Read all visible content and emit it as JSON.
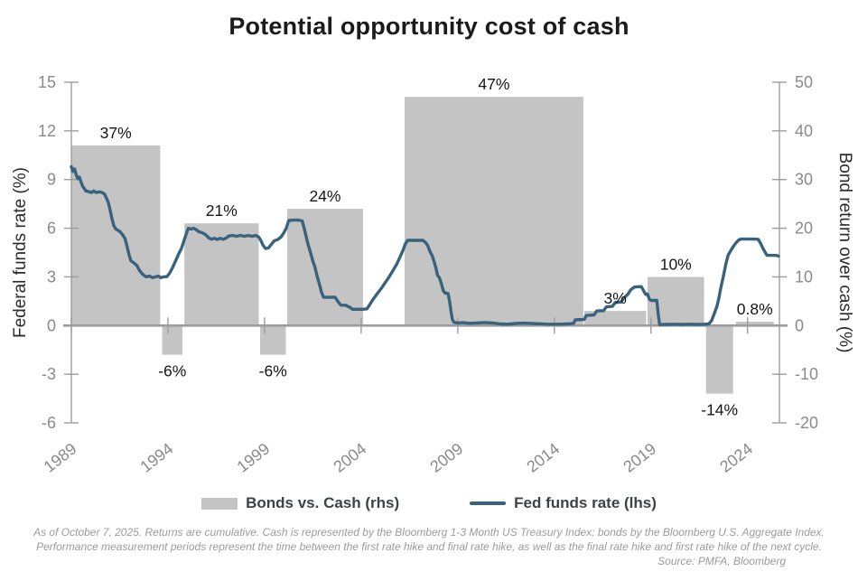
{
  "title": "Potential opportunity cost of cash",
  "legend": {
    "bars": {
      "label": "Bonds vs. Cash (rhs)"
    },
    "line": {
      "label": "Fed funds rate (lhs)"
    }
  },
  "footnote": {
    "line1": "As of October 7, 2025. Returns are cumulative. Cash is represented by the Bloomberg 1-3 Month US Treasury Index; bonds by the Bloomberg U.S. Aggregate Index.",
    "line2": "Performance measurement periods represent the time between the first rate hike and final rate hike, as well as the final rate hike and first rate hike of the next cycle.",
    "source": "Source: PMFA, Bloomberg"
  },
  "chart_data": {
    "type": "combo-bar-line",
    "title": "Potential opportunity cost of cash",
    "grid": false,
    "legend_position": "bottom",
    "left_axis": {
      "label": "Federal funds rate (%)",
      "min": -6,
      "max": 15,
      "ticks": [
        15,
        12,
        9,
        6,
        3,
        0,
        -3,
        -6
      ]
    },
    "right_axis": {
      "label": "Bond return over cash (%)",
      "min": -20,
      "max": 50,
      "ticks": [
        50,
        40,
        30,
        20,
        10,
        0,
        -10,
        -20
      ]
    },
    "x_axis": {
      "min": 1989,
      "max": 2025.65,
      "ticks": [
        1989,
        1994,
        1999,
        2004,
        2009,
        2014,
        2019,
        2024
      ]
    },
    "bars": {
      "name": "Bonds vs. Cash (rhs)",
      "units": "cumulative %, right axis",
      "periods": [
        {
          "start": 1989.0,
          "end": 1993.6,
          "value": 37,
          "label": "37%"
        },
        {
          "start": 1993.7,
          "end": 1994.75,
          "value": -6,
          "label": "-6%"
        },
        {
          "start": 1994.85,
          "end": 1998.7,
          "value": 21,
          "label": "21%"
        },
        {
          "start": 1998.77,
          "end": 2000.1,
          "value": -6,
          "label": "-6%"
        },
        {
          "start": 2000.17,
          "end": 2004.1,
          "value": 24,
          "label": "24%"
        },
        {
          "start": 2006.25,
          "end": 2015.5,
          "value": 47,
          "label": "47%"
        },
        {
          "start": 2015.55,
          "end": 2018.75,
          "value": 3,
          "label": "3%"
        },
        {
          "start": 2018.82,
          "end": 2021.75,
          "value": 10,
          "label": "10%"
        },
        {
          "start": 2021.85,
          "end": 2023.25,
          "value": -14,
          "label": "-14%"
        },
        {
          "start": 2023.4,
          "end": 2025.35,
          "value": 0.8,
          "label": "0.8%"
        }
      ]
    },
    "line": {
      "name": "Fed funds rate (lhs)",
      "units": "%, left axis",
      "points": [
        [
          1989.0,
          9.8
        ],
        [
          1989.08,
          9.5
        ],
        [
          1989.17,
          9.65
        ],
        [
          1989.25,
          9.3
        ],
        [
          1989.33,
          9.05
        ],
        [
          1989.42,
          9.15
        ],
        [
          1989.5,
          8.85
        ],
        [
          1989.58,
          8.6
        ],
        [
          1989.67,
          8.45
        ],
        [
          1989.75,
          8.3
        ],
        [
          1989.92,
          8.25
        ],
        [
          1990.05,
          8.2
        ],
        [
          1990.15,
          8.3
        ],
        [
          1990.3,
          8.2
        ],
        [
          1990.45,
          8.25
        ],
        [
          1990.6,
          8.2
        ],
        [
          1990.72,
          8.1
        ],
        [
          1990.82,
          7.85
        ],
        [
          1990.92,
          7.55
        ],
        [
          1991.0,
          7.15
        ],
        [
          1991.1,
          6.6
        ],
        [
          1991.2,
          6.15
        ],
        [
          1991.3,
          5.95
        ],
        [
          1991.45,
          5.85
        ],
        [
          1991.55,
          5.75
        ],
        [
          1991.65,
          5.6
        ],
        [
          1991.78,
          5.35
        ],
        [
          1991.88,
          4.9
        ],
        [
          1991.98,
          4.4
        ],
        [
          1992.08,
          4.0
        ],
        [
          1992.25,
          3.85
        ],
        [
          1992.4,
          3.7
        ],
        [
          1992.5,
          3.45
        ],
        [
          1992.62,
          3.25
        ],
        [
          1992.75,
          3.1
        ],
        [
          1992.88,
          3.0
        ],
        [
          1993.05,
          3.05
        ],
        [
          1993.2,
          2.95
        ],
        [
          1993.35,
          3.0
        ],
        [
          1993.5,
          3.05
        ],
        [
          1993.62,
          2.95
        ],
        [
          1993.78,
          3.0
        ],
        [
          1993.95,
          3.02
        ],
        [
          1994.1,
          3.25
        ],
        [
          1994.25,
          3.6
        ],
        [
          1994.4,
          4.0
        ],
        [
          1994.55,
          4.4
        ],
        [
          1994.7,
          4.75
        ],
        [
          1994.82,
          5.2
        ],
        [
          1994.93,
          5.6
        ],
        [
          1995.05,
          6.0
        ],
        [
          1995.2,
          5.95
        ],
        [
          1995.32,
          6.0
        ],
        [
          1995.45,
          5.92
        ],
        [
          1995.6,
          5.78
        ],
        [
          1995.78,
          5.72
        ],
        [
          1995.95,
          5.6
        ],
        [
          1996.1,
          5.42
        ],
        [
          1996.25,
          5.32
        ],
        [
          1996.4,
          5.38
        ],
        [
          1996.55,
          5.3
        ],
        [
          1996.7,
          5.38
        ],
        [
          1996.85,
          5.32
        ],
        [
          1997.0,
          5.38
        ],
        [
          1997.15,
          5.52
        ],
        [
          1997.35,
          5.55
        ],
        [
          1997.55,
          5.5
        ],
        [
          1997.75,
          5.56
        ],
        [
          1997.95,
          5.5
        ],
        [
          1998.15,
          5.55
        ],
        [
          1998.35,
          5.5
        ],
        [
          1998.55,
          5.55
        ],
        [
          1998.7,
          5.45
        ],
        [
          1998.82,
          5.22
        ],
        [
          1998.92,
          4.95
        ],
        [
          1999.05,
          4.75
        ],
        [
          1999.2,
          4.78
        ],
        [
          1999.35,
          5.0
        ],
        [
          1999.5,
          5.22
        ],
        [
          1999.68,
          5.3
        ],
        [
          1999.85,
          5.45
        ],
        [
          2000.0,
          5.72
        ],
        [
          2000.12,
          6.0
        ],
        [
          2000.25,
          6.48
        ],
        [
          2000.5,
          6.5
        ],
        [
          2000.75,
          6.5
        ],
        [
          2000.95,
          6.45
        ],
        [
          2001.05,
          6.0
        ],
        [
          2001.15,
          5.5
        ],
        [
          2001.25,
          5.02
        ],
        [
          2001.38,
          4.5
        ],
        [
          2001.5,
          3.97
        ],
        [
          2001.6,
          3.65
        ],
        [
          2001.72,
          3.05
        ],
        [
          2001.85,
          2.5
        ],
        [
          2001.95,
          2.05
        ],
        [
          2002.05,
          1.75
        ],
        [
          2002.35,
          1.74
        ],
        [
          2002.65,
          1.75
        ],
        [
          2002.82,
          1.45
        ],
        [
          2002.95,
          1.26
        ],
        [
          2003.2,
          1.25
        ],
        [
          2003.42,
          1.12
        ],
        [
          2003.55,
          1.0
        ],
        [
          2003.85,
          1.01
        ],
        [
          2004.1,
          1.0
        ],
        [
          2004.3,
          1.03
        ],
        [
          2004.45,
          1.3
        ],
        [
          2004.62,
          1.62
        ],
        [
          2004.85,
          2.0
        ],
        [
          2005.05,
          2.3
        ],
        [
          2005.25,
          2.65
        ],
        [
          2005.45,
          3.0
        ],
        [
          2005.65,
          3.4
        ],
        [
          2005.85,
          3.8
        ],
        [
          2006.0,
          4.2
        ],
        [
          2006.15,
          4.6
        ],
        [
          2006.28,
          5.0
        ],
        [
          2006.4,
          5.25
        ],
        [
          2006.7,
          5.25
        ],
        [
          2007.0,
          5.26
        ],
        [
          2007.2,
          5.25
        ],
        [
          2007.35,
          5.1
        ],
        [
          2007.45,
          4.92
        ],
        [
          2007.55,
          4.6
        ],
        [
          2007.68,
          4.3
        ],
        [
          2007.78,
          3.95
        ],
        [
          2007.88,
          3.5
        ],
        [
          2007.95,
          3.1
        ],
        [
          2008.05,
          2.95
        ],
        [
          2008.15,
          2.6
        ],
        [
          2008.25,
          2.15
        ],
        [
          2008.35,
          2.0
        ],
        [
          2008.5,
          1.98
        ],
        [
          2008.58,
          1.5
        ],
        [
          2008.65,
          0.9
        ],
        [
          2008.72,
          0.4
        ],
        [
          2008.8,
          0.2
        ],
        [
          2009.0,
          0.16
        ],
        [
          2009.3,
          0.18
        ],
        [
          2009.6,
          0.14
        ],
        [
          2010.0,
          0.16
        ],
        [
          2010.4,
          0.19
        ],
        [
          2010.8,
          0.16
        ],
        [
          2011.2,
          0.1
        ],
        [
          2011.6,
          0.08
        ],
        [
          2012.0,
          0.13
        ],
        [
          2012.4,
          0.15
        ],
        [
          2012.8,
          0.13
        ],
        [
          2013.2,
          0.11
        ],
        [
          2013.6,
          0.09
        ],
        [
          2014.0,
          0.08
        ],
        [
          2014.4,
          0.09
        ],
        [
          2014.8,
          0.11
        ],
        [
          2015.0,
          0.14
        ],
        [
          2015.08,
          0.35
        ],
        [
          2015.55,
          0.38
        ],
        [
          2015.65,
          0.62
        ],
        [
          2016.05,
          0.65
        ],
        [
          2016.2,
          0.9
        ],
        [
          2016.55,
          0.92
        ],
        [
          2016.7,
          1.16
        ],
        [
          2017.0,
          1.18
        ],
        [
          2017.15,
          1.42
        ],
        [
          2017.45,
          1.45
        ],
        [
          2017.6,
          1.7
        ],
        [
          2017.8,
          1.92
        ],
        [
          2017.95,
          2.2
        ],
        [
          2018.15,
          2.38
        ],
        [
          2018.5,
          2.4
        ],
        [
          2018.62,
          2.15
        ],
        [
          2018.72,
          1.92
        ],
        [
          2018.82,
          1.95
        ],
        [
          2018.92,
          1.62
        ],
        [
          2019.02,
          1.55
        ],
        [
          2019.3,
          1.55
        ],
        [
          2019.38,
          0.65
        ],
        [
          2019.45,
          0.06
        ],
        [
          2019.8,
          0.07
        ],
        [
          2020.2,
          0.08
        ],
        [
          2020.6,
          0.07
        ],
        [
          2021.0,
          0.08
        ],
        [
          2021.4,
          0.07
        ],
        [
          2021.8,
          0.08
        ],
        [
          2022.0,
          0.1
        ],
        [
          2022.15,
          0.33
        ],
        [
          2022.3,
          0.8
        ],
        [
          2022.42,
          1.2
        ],
        [
          2022.52,
          1.7
        ],
        [
          2022.62,
          2.35
        ],
        [
          2022.75,
          3.05
        ],
        [
          2022.88,
          3.8
        ],
        [
          2023.0,
          4.35
        ],
        [
          2023.12,
          4.6
        ],
        [
          2023.25,
          4.85
        ],
        [
          2023.4,
          5.1
        ],
        [
          2023.55,
          5.28
        ],
        [
          2023.65,
          5.33
        ],
        [
          2023.95,
          5.33
        ],
        [
          2024.3,
          5.33
        ],
        [
          2024.55,
          5.32
        ],
        [
          2024.68,
          5.05
        ],
        [
          2024.8,
          4.75
        ],
        [
          2024.92,
          4.5
        ],
        [
          2025.0,
          4.33
        ],
        [
          2025.25,
          4.33
        ],
        [
          2025.5,
          4.32
        ],
        [
          2025.6,
          4.28
        ]
      ]
    },
    "colors": {
      "bar": "#c4c4c4",
      "line": "#39627d",
      "axis": "#9c9c9c",
      "tick_label": "#8a8a8a",
      "bar_label": "#151515",
      "axis_title": "#2b2b2b"
    }
  }
}
